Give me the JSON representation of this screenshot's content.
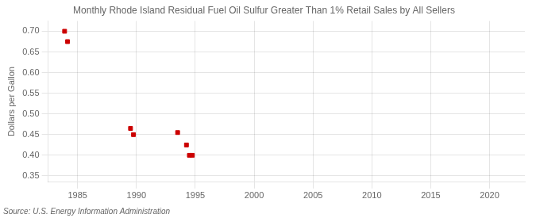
{
  "chart_data": {
    "type": "scatter",
    "title": "Monthly Rhode Island Residual Fuel Oil Sulfur Greater Than 1% Retail Sales by All Sellers",
    "ylabel": "Dollars per Gallon",
    "source": "Source: U.S. Energy Information Administration",
    "x": [
      1983.9,
      1984.15,
      1989.5,
      1989.75,
      1993.5,
      1994.25,
      1994.5,
      1994.75
    ],
    "values": [
      0.7,
      0.675,
      0.465,
      0.45,
      0.455,
      0.425,
      0.4,
      0.4
    ],
    "color": "#cc0000",
    "marker": "square",
    "xlim": [
      1982.5,
      2023
    ],
    "ylim": [
      0.335,
      0.725
    ],
    "xticks": [
      1985,
      1990,
      1995,
      2000,
      2005,
      2010,
      2015,
      2020
    ],
    "yticks": [
      0.35,
      {
        "value": 0.4,
        "label": "0.40"
      },
      0.45,
      {
        "value": 0.5,
        "label": "0.50"
      },
      0.55,
      {
        "value": 0.6,
        "label": "0.60"
      },
      0.65,
      {
        "value": 0.7,
        "label": "0.70"
      }
    ],
    "grid": true
  }
}
